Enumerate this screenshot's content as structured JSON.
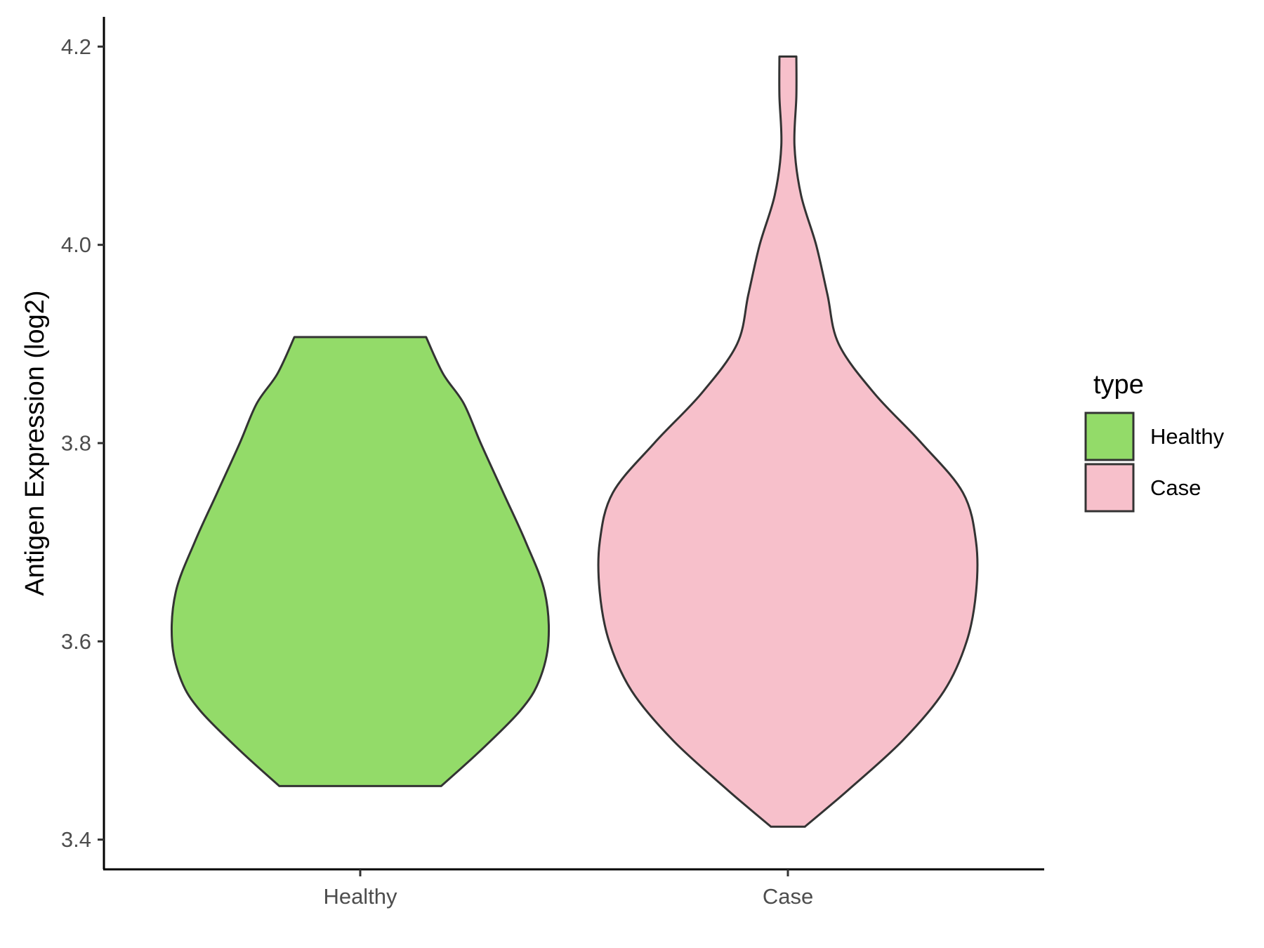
{
  "chart_data": {
    "type": "violin",
    "title": "",
    "xlabel": "",
    "ylabel": "Antigen Expression (log2)",
    "ylim": [
      3.37,
      4.23
    ],
    "yticks": [
      "3.4",
      "3.6",
      "3.8",
      "4.0",
      "4.2"
    ],
    "categories": [
      "Healthy",
      "Case"
    ],
    "legend": {
      "title": "type",
      "position": "right",
      "entries": [
        "Healthy",
        "Case"
      ]
    },
    "grid": false,
    "series": [
      {
        "name": "Healthy",
        "color": "#93DB69",
        "min": 3.454,
        "max": 3.907,
        "density": [
          [
            3.454,
            0.43
          ],
          [
            3.49,
            0.64
          ],
          [
            3.53,
            0.85
          ],
          [
            3.56,
            0.95
          ],
          [
            3.6,
            1.0
          ],
          [
            3.65,
            0.98
          ],
          [
            3.7,
            0.88
          ],
          [
            3.75,
            0.76
          ],
          [
            3.8,
            0.64
          ],
          [
            3.84,
            0.55
          ],
          [
            3.87,
            0.44
          ],
          [
            3.907,
            0.35
          ]
        ]
      },
      {
        "name": "Case",
        "color": "#F7C0CB",
        "min": 3.413,
        "max": 4.19,
        "density": [
          [
            3.413,
            0.09
          ],
          [
            3.45,
            0.32
          ],
          [
            3.5,
            0.61
          ],
          [
            3.55,
            0.83
          ],
          [
            3.6,
            0.95
          ],
          [
            3.65,
            1.0
          ],
          [
            3.7,
            1.0
          ],
          [
            3.75,
            0.93
          ],
          [
            3.8,
            0.71
          ],
          [
            3.85,
            0.46
          ],
          [
            3.9,
            0.27
          ],
          [
            3.95,
            0.21
          ],
          [
            4.0,
            0.15
          ],
          [
            4.05,
            0.07
          ],
          [
            4.1,
            0.035
          ],
          [
            4.15,
            0.045
          ],
          [
            4.19,
            0.045
          ]
        ]
      }
    ]
  }
}
